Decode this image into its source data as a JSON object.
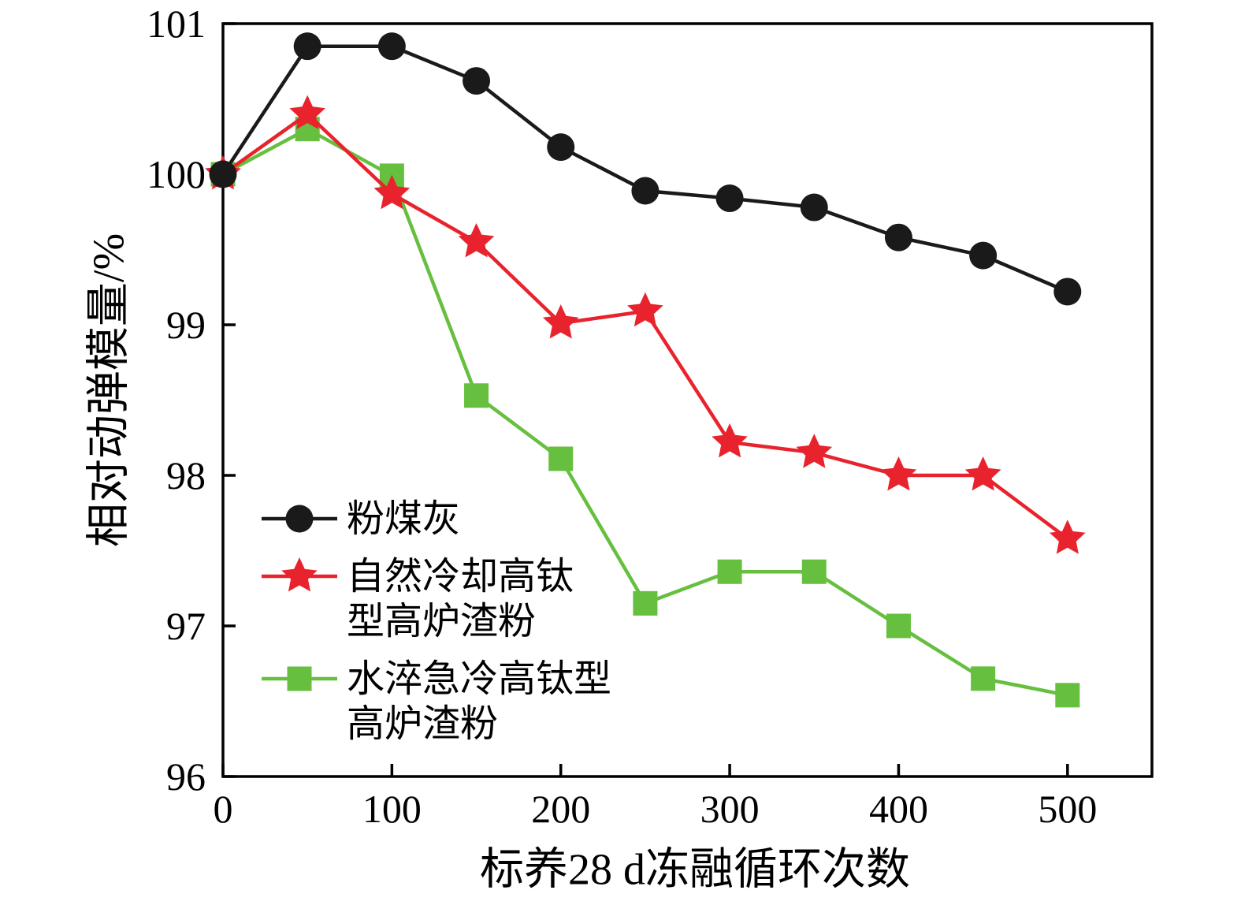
{
  "chart_data": {
    "type": "line",
    "title": "",
    "xlabel": "标养28 d冻融循环次数",
    "ylabel": "相对动弹模量/%",
    "x": [
      0,
      50,
      100,
      150,
      200,
      250,
      300,
      350,
      400,
      450,
      500
    ],
    "x_ticks": [
      0,
      100,
      200,
      300,
      400,
      500
    ],
    "y_ticks": [
      96,
      97,
      98,
      99,
      100,
      101
    ],
    "xlim": [
      0,
      550
    ],
    "ylim": [
      96,
      101
    ],
    "grid": false,
    "legend_position": "inside-lower-left",
    "axis_color": "#000000",
    "series": [
      {
        "name": "粉煤灰",
        "legend_label": "粉煤灰",
        "color": "#1a1a1a",
        "marker": "circle",
        "values": [
          100.0,
          100.85,
          100.85,
          100.62,
          100.18,
          99.89,
          99.84,
          99.78,
          99.58,
          99.46,
          99.22
        ]
      },
      {
        "name": "自然冷却高钛型高炉渣粉",
        "legend_label": "自然冷却高钛\n型高炉渣粉",
        "color": "#e8232d",
        "marker": "star",
        "values": [
          100.0,
          100.4,
          99.87,
          99.55,
          99.01,
          99.09,
          98.22,
          98.15,
          98.0,
          98.0,
          97.58
        ]
      },
      {
        "name": "水淬急冷高钛型高炉渣粉",
        "legend_label": "水淬急冷高钛型\n高炉渣粉",
        "color": "#66bf3f",
        "marker": "square",
        "values": [
          100.0,
          100.3,
          99.99,
          98.53,
          98.11,
          97.15,
          97.36,
          97.36,
          97.0,
          96.65,
          96.54
        ]
      }
    ]
  }
}
